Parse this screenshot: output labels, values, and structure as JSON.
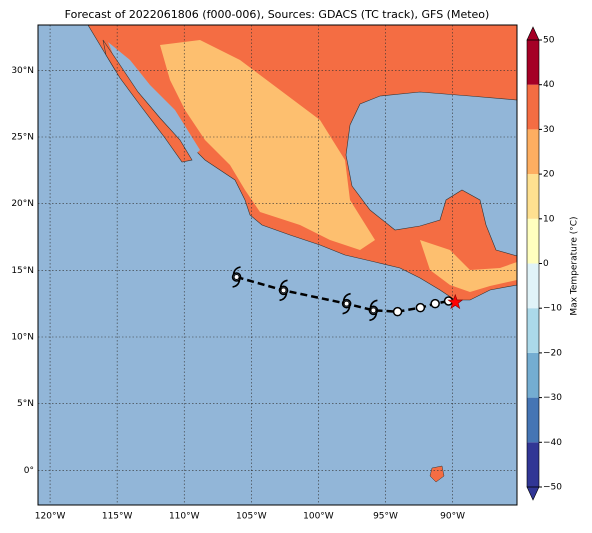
{
  "chart_data": {
    "type": "map",
    "title": "Forecast of 2022061806 (f000-006), Sources: GDACS (TC track), GFS (Meteo)",
    "xlim": [
      -120.9,
      -85.2
    ],
    "ylim": [
      -2.6,
      33.4
    ],
    "xticks": [
      {
        "value": -120,
        "label": "120°W"
      },
      {
        "value": -115,
        "label": "115°W"
      },
      {
        "value": -110,
        "label": "110°W"
      },
      {
        "value": -105,
        "label": "105°W"
      },
      {
        "value": -100,
        "label": "100°W"
      },
      {
        "value": -95,
        "label": "95°W"
      },
      {
        "value": -90,
        "label": "90°W"
      }
    ],
    "yticks": [
      {
        "value": 0,
        "label": "0°"
      },
      {
        "value": 5,
        "label": "5°N"
      },
      {
        "value": 10,
        "label": "10°N"
      },
      {
        "value": 15,
        "label": "15°N"
      },
      {
        "value": 20,
        "label": "20°N"
      },
      {
        "value": 25,
        "label": "25°N"
      },
      {
        "value": 30,
        "label": "30°N"
      }
    ],
    "grid": true,
    "track": {
      "x": [
        -106.1,
        -102.6,
        -97.9,
        -95.9,
        -94.1,
        -92.4,
        -91.3,
        -90.3
      ],
      "y": [
        14.5,
        13.5,
        12.5,
        12.0,
        11.9,
        12.2,
        12.5,
        12.7
      ],
      "marker": [
        "hurricane",
        "hurricane",
        "hurricane",
        "hurricane",
        "circle",
        "circle",
        "circle",
        "circle"
      ],
      "color": "#000000"
    },
    "position": {
      "x": -89.8,
      "y": 12.6,
      "color": "#ff0000"
    },
    "colorbar": {
      "label": "Max Temperature (°C)",
      "levels": [
        -50,
        -40,
        -30,
        -20,
        -10,
        0,
        10,
        20,
        30,
        40,
        50
      ],
      "colors": [
        "#313695",
        "#4575b4",
        "#74add1",
        "#abd9e9",
        "#e0f3f8",
        "#ffffbf",
        "#fee090",
        "#fdae61",
        "#f46d43",
        "#a50026"
      ],
      "ticks": [
        {
          "value": 50,
          "label": "50"
        },
        {
          "value": 40,
          "label": "40"
        },
        {
          "value": 30,
          "label": "30"
        },
        {
          "value": 20,
          "label": "20"
        },
        {
          "value": 10,
          "label": "10"
        },
        {
          "value": 0,
          "label": "0"
        },
        {
          "value": -10,
          "label": "−10"
        },
        {
          "value": -20,
          "label": "−20"
        },
        {
          "value": -30,
          "label": "−30"
        },
        {
          "value": -40,
          "label": "−40"
        },
        {
          "value": -50,
          "label": "−50"
        }
      ]
    }
  }
}
